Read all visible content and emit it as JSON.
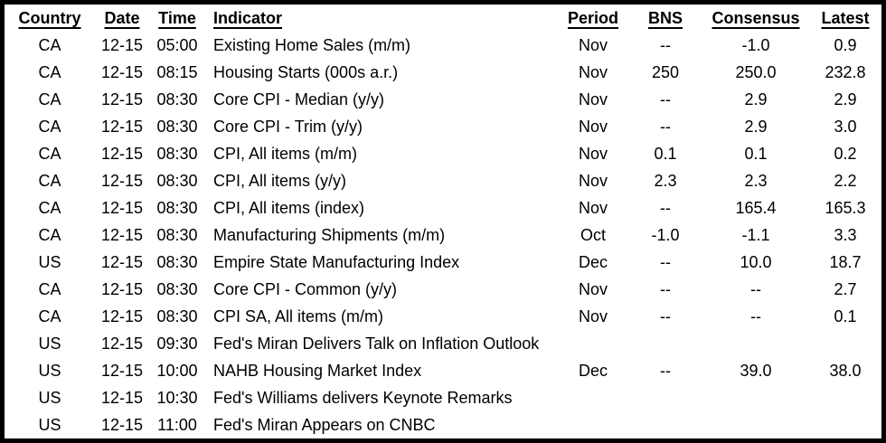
{
  "table": {
    "title": "economic-calendar",
    "columns": [
      {
        "key": "country",
        "label": "Country"
      },
      {
        "key": "date",
        "label": "Date"
      },
      {
        "key": "time",
        "label": "Time"
      },
      {
        "key": "indicator",
        "label": "Indicator"
      },
      {
        "key": "period",
        "label": "Period"
      },
      {
        "key": "bns",
        "label": "BNS"
      },
      {
        "key": "consensus",
        "label": "Consensus"
      },
      {
        "key": "latest",
        "label": "Latest"
      }
    ],
    "rows": [
      [
        "CA",
        "12-15",
        "05:00",
        "Existing Home Sales (m/m)",
        "Nov",
        "--",
        "-1.0",
        "0.9"
      ],
      [
        "CA",
        "12-15",
        "08:15",
        "Housing Starts (000s a.r.)",
        "Nov",
        "250",
        "250.0",
        "232.8"
      ],
      [
        "CA",
        "12-15",
        "08:30",
        "Core CPI - Median (y/y)",
        "Nov",
        "--",
        "2.9",
        "2.9"
      ],
      [
        "CA",
        "12-15",
        "08:30",
        "Core CPI - Trim (y/y)",
        "Nov",
        "--",
        "2.9",
        "3.0"
      ],
      [
        "CA",
        "12-15",
        "08:30",
        "CPI, All items (m/m)",
        "Nov",
        "0.1",
        "0.1",
        "0.2"
      ],
      [
        "CA",
        "12-15",
        "08:30",
        "CPI, All items (y/y)",
        "Nov",
        "2.3",
        "2.3",
        "2.2"
      ],
      [
        "CA",
        "12-15",
        "08:30",
        "CPI, All items (index)",
        "Nov",
        "--",
        "165.4",
        "165.3"
      ],
      [
        "CA",
        "12-15",
        "08:30",
        "Manufacturing Shipments (m/m)",
        "Oct",
        "-1.0",
        "-1.1",
        "3.3"
      ],
      [
        "US",
        "12-15",
        "08:30",
        "Empire State Manufacturing Index",
        "Dec",
        "--",
        "10.0",
        "18.7"
      ],
      [
        "CA",
        "12-15",
        "08:30",
        "Core CPI - Common (y/y)",
        "Nov",
        "--",
        "--",
        "2.7"
      ],
      [
        "CA",
        "12-15",
        "08:30",
        "CPI SA, All items (m/m)",
        "Nov",
        "--",
        "--",
        "0.1"
      ],
      [
        "US",
        "12-15",
        "09:30",
        "Fed's Miran Delivers Talk on Inflation Outlook",
        "",
        "",
        "",
        ""
      ],
      [
        "US",
        "12-15",
        "10:00",
        "NAHB Housing Market Index",
        "Dec",
        "--",
        "39.0",
        "38.0"
      ],
      [
        "US",
        "12-15",
        "10:30",
        "Fed's Williams delivers Keynote Remarks",
        "",
        "",
        "",
        ""
      ],
      [
        "US",
        "12-15",
        "11:00",
        "Fed's Miran Appears on CNBC",
        "",
        "",
        "",
        ""
      ]
    ]
  }
}
